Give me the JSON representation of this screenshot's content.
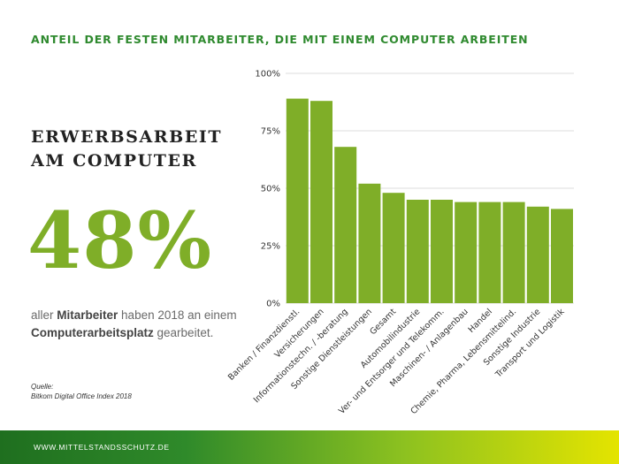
{
  "page_title": "ANTEIL DER FESTEN MITARBEITER, DIE MIT EINEM COMPUTER ARBEITEN",
  "headline": {
    "line1": "ERWERBSARBEIT",
    "line2": "AM COMPUTER"
  },
  "big_stat": "48%",
  "description": {
    "part1": "aller ",
    "bold1": "Mitarbeiter",
    "part2": " haben 2018 an einem ",
    "bold2": "Computerarbeitsplatz",
    "part3": " gearbeitet."
  },
  "source": {
    "label": "Quelle:",
    "text": "Bitkom Digital Office Index 2018"
  },
  "footer": {
    "url": "WWW.MITTELSTANDSSCHUTZ.DE"
  },
  "colors": {
    "bar": "#7fae28",
    "accent": "#2f8a2f",
    "grid": "#dddddd"
  },
  "chart_data": {
    "type": "bar",
    "title": "ANTEIL DER FESTEN MITARBEITER, DIE MIT EINEM COMPUTER ARBEITEN",
    "xlabel": "",
    "ylabel": "",
    "ylim": [
      0,
      100
    ],
    "yticks": [
      0,
      25,
      50,
      75,
      100
    ],
    "ytick_labels": [
      "0%",
      "25%",
      "50%",
      "75%",
      "100%"
    ],
    "grid": true,
    "categories": [
      "Banken / Finanzdienstl.",
      "Versicherungen",
      "Informationstechn. / -beratung",
      "Sonstige Dienstleistungen",
      "Gesamt",
      "Automobilindustrie",
      "Ver- und Entsorger und Telekomm.",
      "Maschinen- / Anlagenbau",
      "Handel",
      "Chemie, Pharma, Lebensmittelind.",
      "Sonstige Industrie",
      "Transport und Logistik"
    ],
    "values": [
      89,
      88,
      68,
      52,
      48,
      45,
      45,
      44,
      44,
      44,
      42,
      41
    ]
  }
}
